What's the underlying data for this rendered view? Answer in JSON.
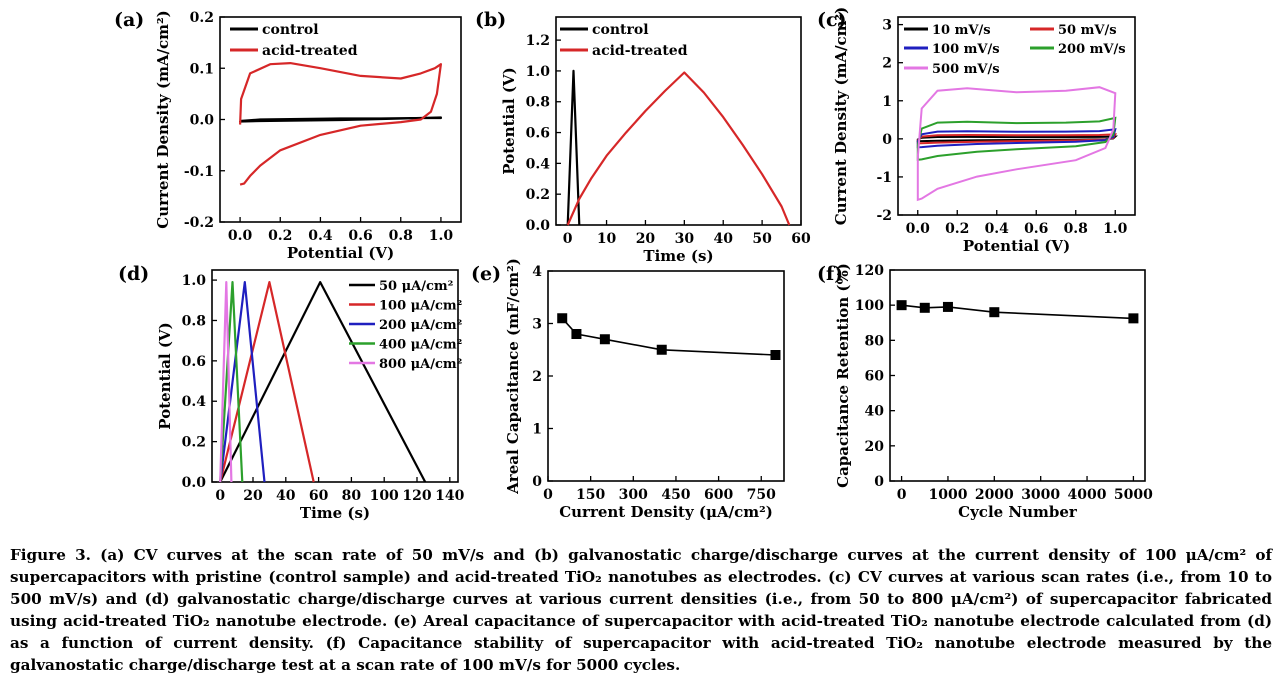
{
  "figure": {
    "caption_label": "Figure 3.",
    "caption_text": "(a) CV curves at the scan rate of 50 mV/s and (b) galvanostatic charge/discharge curves at the current density of 100 μA/cm² of supercapacitors with pristine (control sample) and acid-treated TiO₂ nanotubes as electrodes. (c) CV curves at various scan rates (i.e., from 10 to 500 mV/s) and (d) galvanostatic charge/discharge curves at various current densities (i.e., from 50 to 800 μA/cm²) of supercapacitor fabricated using acid-treated TiO₂ nanotube electrode. (e) Areal capacitance of supercapacitor with acid-treated TiO₂ nanotube electrode calculated from (d) as a function of current density. (f) Capacitance stability of supercapacitor with acid-treated TiO₂ nanotube electrode measured by the galvanostatic charge/discharge test at a scan rate of 100 mV/s for 5000 cycles."
  },
  "chart_data": [
    {
      "panel": "(a)",
      "type": "line",
      "xlabel": "Potential (V)",
      "ylabel": "Current Density (mA/cm²)",
      "xlim": [
        -0.1,
        1.1
      ],
      "ylim": [
        -0.2,
        0.2
      ],
      "xticks": [
        "0.0",
        "0.2",
        "0.4",
        "0.6",
        "0.8",
        "1.0"
      ],
      "yticks": [
        "-0.2",
        "-0.1",
        "0.0",
        "0.1",
        "0.2"
      ],
      "legend": "top-left",
      "series": [
        {
          "name": "control",
          "color": "#000000",
          "x": [
            0.0,
            0.1,
            0.3,
            0.5,
            0.7,
            0.9,
            1.0,
            1.0,
            0.9,
            0.7,
            0.5,
            0.3,
            0.1,
            0.0,
            0.0
          ],
          "y": [
            -0.003,
            0.0,
            0.001,
            0.002,
            0.002,
            0.003,
            0.003,
            0.004,
            0.003,
            0.001,
            -0.001,
            -0.002,
            -0.003,
            -0.004,
            -0.003
          ]
        },
        {
          "name": "acid-treated",
          "color": "#d62728",
          "x": [
            0.0,
            0.005,
            0.05,
            0.15,
            0.25,
            0.4,
            0.6,
            0.8,
            0.9,
            0.97,
            1.0,
            0.98,
            0.95,
            0.9,
            0.8,
            0.6,
            0.4,
            0.2,
            0.1,
            0.05,
            0.02,
            0.0
          ],
          "y": [
            -0.01,
            0.04,
            0.09,
            0.108,
            0.11,
            0.1,
            0.085,
            0.08,
            0.09,
            0.1,
            0.108,
            0.05,
            0.015,
            0.0,
            -0.005,
            -0.012,
            -0.03,
            -0.06,
            -0.09,
            -0.11,
            -0.125,
            -0.127
          ]
        }
      ]
    },
    {
      "panel": "(b)",
      "type": "line",
      "xlabel": "Time (s)",
      "ylabel": "Potential (V)",
      "xlim": [
        -3,
        60
      ],
      "ylim": [
        0.0,
        1.35
      ],
      "xticks": [
        "0",
        "10",
        "20",
        "30",
        "40",
        "50",
        "60"
      ],
      "yticks": [
        "0.0",
        "0.2",
        "0.4",
        "0.6",
        "0.8",
        "1.0",
        "1.2"
      ],
      "legend": "top-left",
      "series": [
        {
          "name": "control",
          "color": "#000000",
          "x": [
            0.0,
            1.5,
            3.0
          ],
          "y": [
            0.0,
            1.0,
            0.0
          ]
        },
        {
          "name": "acid-treated",
          "color": "#d62728",
          "x": [
            0,
            3,
            6,
            10,
            15,
            20,
            25,
            30,
            35,
            40,
            45,
            50,
            55,
            57
          ],
          "y": [
            0.0,
            0.17,
            0.3,
            0.45,
            0.6,
            0.74,
            0.87,
            0.99,
            0.86,
            0.7,
            0.52,
            0.33,
            0.12,
            0.0
          ]
        }
      ]
    },
    {
      "panel": "(c)",
      "type": "line",
      "xlabel": "Potential (V)",
      "ylabel": "Current Density (mA/cm²)",
      "xlim": [
        -0.1,
        1.1
      ],
      "ylim": [
        -2,
        3.2
      ],
      "xticks": [
        "0.0",
        "0.2",
        "0.4",
        "0.6",
        "0.8",
        "1.0"
      ],
      "yticks": [
        "-2",
        "-1",
        "0",
        "1",
        "2",
        "3"
      ],
      "legend": "top",
      "series": [
        {
          "name": "10 mV/s",
          "color": "#000000",
          "top": 0.05,
          "bottom": -0.06,
          "end": 0.06
        },
        {
          "name": "50 mV/s",
          "color": "#d62728",
          "top": 0.1,
          "bottom": -0.12,
          "end": 0.12
        },
        {
          "name": "100 mV/s",
          "color": "#1f1fbf",
          "top": 0.2,
          "bottom": -0.22,
          "end": 0.25
        },
        {
          "name": "200 mV/s",
          "color": "#2ca02c",
          "top": 0.45,
          "bottom": -0.55,
          "end": 0.55
        },
        {
          "name": "500 mV/s",
          "color": "#e377e3",
          "top": 1.33,
          "bottom": -1.6,
          "end": 1.2
        }
      ]
    },
    {
      "panel": "(d)",
      "type": "line",
      "xlabel": "Time (s)",
      "ylabel": "Potential (V)",
      "xlim": [
        -5,
        145
      ],
      "ylim": [
        0.0,
        1.05
      ],
      "xticks": [
        "0",
        "20",
        "40",
        "60",
        "80",
        "100",
        "120",
        "140"
      ],
      "yticks": [
        "0.0",
        "0.2",
        "0.4",
        "0.6",
        "0.8",
        "1.0"
      ],
      "legend": "top-right",
      "series": [
        {
          "name": "50 μA/cm²",
          "color": "#000000",
          "x": [
            0,
            61,
            125
          ],
          "y": [
            0,
            0.99,
            0
          ]
        },
        {
          "name": "100 μA/cm²",
          "color": "#d62728",
          "x": [
            0,
            30,
            57
          ],
          "y": [
            0,
            0.99,
            0
          ]
        },
        {
          "name": "200 μA/cm²",
          "color": "#1f1fbf",
          "x": [
            0,
            15,
            27
          ],
          "y": [
            0,
            0.99,
            0
          ]
        },
        {
          "name": "400 μA/cm²",
          "color": "#2ca02c",
          "x": [
            0,
            7.5,
            13.5
          ],
          "y": [
            0,
            0.99,
            0
          ]
        },
        {
          "name": "800 μA/cm²",
          "color": "#e377e3",
          "x": [
            0,
            3.7,
            6.8
          ],
          "y": [
            0,
            0.99,
            0
          ]
        }
      ]
    },
    {
      "panel": "(e)",
      "type": "line",
      "xlabel": "Current Density (μA/cm²)",
      "ylabel": "Areal Capacitance (mF/cm²)",
      "xlim": [
        0,
        830
      ],
      "ylim": [
        0,
        4
      ],
      "xticks": [
        "0",
        "150",
        "300",
        "450",
        "600",
        "750"
      ],
      "yticks": [
        "0",
        "1",
        "2",
        "3",
        "4"
      ],
      "series": [
        {
          "x": [
            50,
            100,
            200,
            400,
            800
          ],
          "y": [
            3.1,
            2.8,
            2.7,
            2.5,
            2.4
          ],
          "color": "#000000"
        }
      ]
    },
    {
      "panel": "(f)",
      "type": "line",
      "xlabel": "Cycle Number",
      "ylabel": "Capacitance Retention (%)",
      "xlim": [
        -250,
        5250
      ],
      "ylim": [
        0,
        120
      ],
      "xticks": [
        "0",
        "1000",
        "2000",
        "3000",
        "4000",
        "5000"
      ],
      "yticks": [
        "0",
        "20",
        "40",
        "60",
        "80",
        "100",
        "120"
      ],
      "series": [
        {
          "x": [
            0,
            500,
            1000,
            2000,
            5000
          ],
          "y": [
            100,
            98.5,
            99,
            96,
            92.5
          ],
          "color": "#000000"
        }
      ]
    }
  ]
}
